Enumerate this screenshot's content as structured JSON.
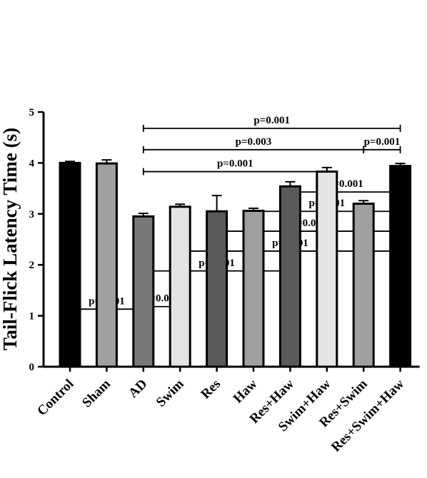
{
  "chart_data": {
    "type": "bar",
    "title": "",
    "xlabel": "",
    "ylabel": "Tail-Flick Latency Time (s)",
    "ylim": [
      0,
      5
    ],
    "yticks": [
      0,
      1,
      2,
      3,
      4,
      5
    ],
    "grid": false,
    "categories": [
      "Control",
      "Sham",
      "AD",
      "Swim",
      "Res",
      "Haw",
      "Res+Haw",
      "Swim+Haw",
      "Res+Swim",
      "Res+Swim+Haw"
    ],
    "values": [
      4.0,
      3.99,
      2.95,
      3.14,
      3.05,
      3.06,
      3.54,
      3.83,
      3.2,
      3.94
    ],
    "errors": [
      0.03,
      0.07,
      0.06,
      0.05,
      0.31,
      0.05,
      0.09,
      0.08,
      0.06,
      0.05
    ],
    "colors": [
      "#000000",
      "#a0a0a0",
      "#787878",
      "#e4e4e4",
      "#5a5a5a",
      "#a0a0a0",
      "#5a5a5a",
      "#e4e4e4",
      "#a0a0a0",
      "#000000"
    ],
    "comparisons": [
      {
        "from": "AD",
        "to": "Res+Swim+Haw",
        "label": "p=0.001",
        "y": 4.68
      },
      {
        "from": "AD",
        "to": "Res+Swim",
        "label": "p=0.003",
        "y": 4.26
      },
      {
        "from": "Res+Swim",
        "to": "Res+Swim+Haw",
        "label": "p=0.001",
        "y": 4.26
      },
      {
        "from": "AD",
        "to": "Swim+Haw",
        "label": "p=0.001",
        "y": 3.83
      },
      {
        "from": "Res+Haw",
        "to": "Res+Swim+Haw",
        "label": "p=0.001",
        "y": 3.43
      },
      {
        "from": "Haw",
        "to": "Res+Swim+Haw",
        "label": "p=0.001",
        "y": 3.05
      },
      {
        "from": "Res",
        "to": "Res+Swim+Haw",
        "label": "p=0.001",
        "y": 2.66
      },
      {
        "from": "Swim",
        "to": "Res+Swim+Haw",
        "label": "p=0.001",
        "y": 2.27
      },
      {
        "from": "AD",
        "to": "Res+Haw",
        "label": "p=0.001",
        "y": 1.88
      },
      {
        "from": "Control",
        "to": "AD",
        "label": "p=0.001",
        "y": 1.13
      },
      {
        "from": "AD",
        "to": "Swim",
        "label": "p=0.048",
        "y": 1.18
      }
    ]
  }
}
